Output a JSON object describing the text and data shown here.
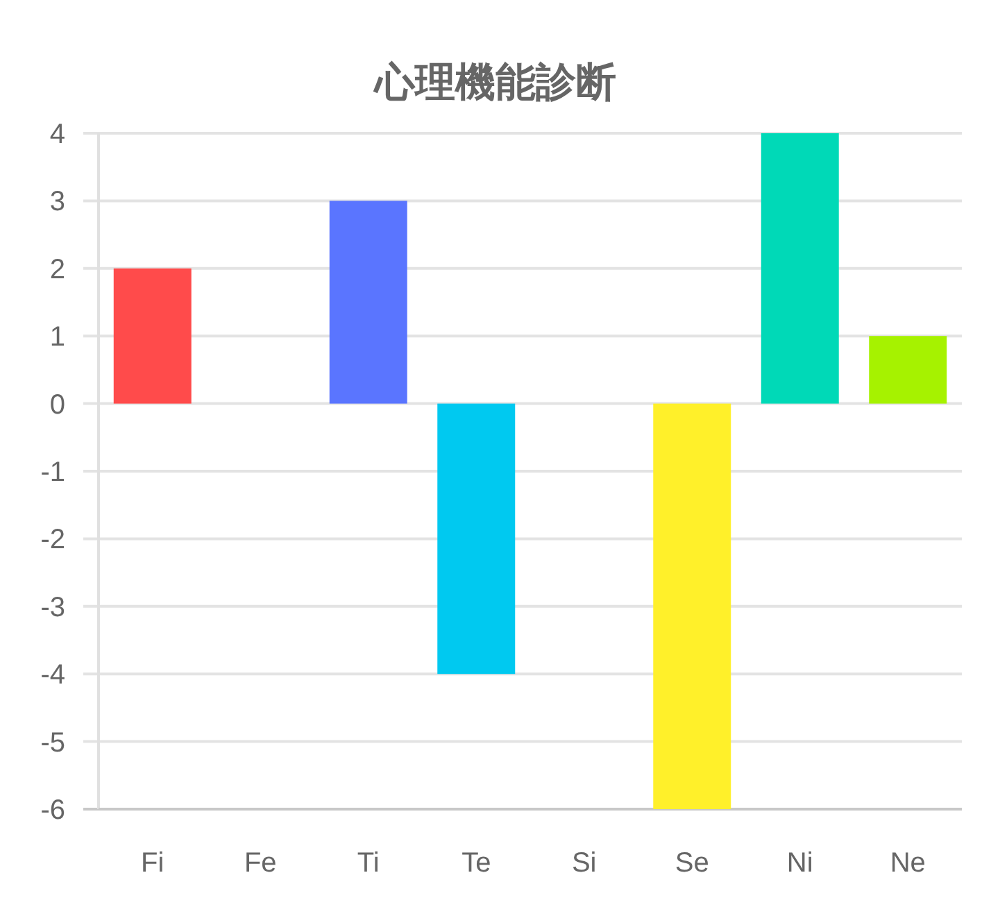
{
  "chart_data": {
    "type": "bar",
    "title": "心理機能診断",
    "categories": [
      "Fi",
      "Fe",
      "Ti",
      "Te",
      "Si",
      "Se",
      "Ni",
      "Ne"
    ],
    "values": [
      2,
      0,
      3,
      -4,
      0,
      -6,
      4,
      1
    ],
    "colors": [
      "#ff4b4b",
      null,
      "#5a75ff",
      "#00c9f0",
      null,
      "#fff02a",
      "#00d9b7",
      "#a6f200"
    ],
    "ylim": [
      -6,
      4
    ],
    "yticks": [
      -6,
      -5,
      -4,
      -3,
      -2,
      -1,
      0,
      1,
      2,
      3,
      4
    ],
    "grid": "y"
  }
}
